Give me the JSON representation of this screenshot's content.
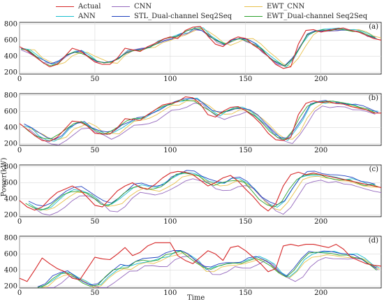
{
  "figure": {
    "ylabel": "Power(kW)",
    "xlabel": "Time"
  },
  "legend": [
    {
      "name": "Actual",
      "color": "#d62728"
    },
    {
      "name": "CNN",
      "color": "#9467bd"
    },
    {
      "name": "EWT_CNN",
      "color": "#e8c04a"
    },
    {
      "name": "ANN",
      "color": "#17becf"
    },
    {
      "name": "STL_Dual-channel Seq2Seq",
      "color": "#1f3fbf"
    },
    {
      "name": "EWT_Dual-channel Seq2Seq",
      "color": "#2ca02c"
    }
  ],
  "chart_data": [
    {
      "type": "line",
      "panel_label": "(a)",
      "xlim": [
        0,
        240
      ],
      "ylim": [
        180,
        820
      ],
      "xticks": [
        0,
        50,
        100,
        150,
        200
      ],
      "yticks": [
        200,
        400,
        600,
        800
      ],
      "grid": true,
      "actual": {
        "x": [
          0,
          5,
          10,
          15,
          20,
          25,
          30,
          35,
          40,
          45,
          50,
          55,
          60,
          65,
          70,
          75,
          80,
          85,
          90,
          95,
          100,
          105,
          110,
          115,
          120,
          125,
          130,
          135,
          140,
          145,
          150,
          155,
          160,
          165,
          170,
          175,
          180,
          185,
          190,
          195,
          200,
          205,
          210,
          215,
          220,
          225,
          230,
          235,
          240
        ],
        "y": [
          520,
          470,
          400,
          330,
          270,
          300,
          400,
          500,
          470,
          400,
          330,
          300,
          300,
          380,
          500,
          480,
          460,
          520,
          560,
          610,
          640,
          620,
          720,
          760,
          770,
          650,
          550,
          520,
          600,
          640,
          620,
          540,
          480,
          400,
          300,
          250,
          270,
          550,
          720,
          730,
          700,
          720,
          740,
          750,
          720,
          700,
          660,
          620,
          600
        ]
      },
      "offsets": {
        "ANN": [
          2,
          8
        ],
        "CNN": [
          1,
          -5
        ],
        "EWT_CNN": [
          5,
          0
        ],
        "STL_Dual-channel Seq2Seq": [
          1,
          4
        ],
        "EWT_Dual-channel Seq2Seq": [
          1,
          -2
        ]
      }
    },
    {
      "type": "line",
      "panel_label": "(b)",
      "xlim": [
        0,
        240
      ],
      "ylim": [
        180,
        820
      ],
      "xticks": [
        0,
        50,
        100,
        150,
        200
      ],
      "yticks": [
        200,
        400,
        600,
        800
      ],
      "grid": true,
      "actual": {
        "x": [
          0,
          5,
          10,
          15,
          20,
          25,
          30,
          35,
          40,
          45,
          50,
          55,
          60,
          65,
          70,
          75,
          80,
          85,
          90,
          95,
          100,
          105,
          110,
          115,
          120,
          125,
          130,
          135,
          140,
          145,
          150,
          155,
          160,
          165,
          170,
          175,
          180,
          185,
          190,
          195,
          200,
          205,
          210,
          215,
          220,
          225,
          230,
          235,
          240
        ],
        "y": [
          450,
          380,
          300,
          240,
          230,
          280,
          380,
          480,
          470,
          420,
          330,
          320,
          320,
          400,
          510,
          500,
          490,
          560,
          620,
          680,
          700,
          720,
          780,
          770,
          690,
          560,
          530,
          600,
          650,
          660,
          610,
          540,
          450,
          330,
          250,
          240,
          280,
          560,
          700,
          730,
          710,
          720,
          700,
          690,
          660,
          640,
          620,
          580,
          580
        ]
      },
      "offsets": {
        "ANN": [
          3,
          0
        ],
        "CNN": [
          6,
          -60
        ],
        "EWT_CNN": [
          6,
          -10
        ],
        "STL_Dual-channel Seq2Seq": [
          3,
          10
        ],
        "EWT_Dual-channel Seq2Seq": [
          1,
          0
        ]
      }
    },
    {
      "type": "line",
      "panel_label": "(c)",
      "xlim": [
        0,
        240
      ],
      "ylim": [
        180,
        820
      ],
      "xticks": [
        0,
        50,
        100,
        150,
        200
      ],
      "yticks": [
        200,
        400,
        600,
        800
      ],
      "grid": true,
      "actual": {
        "x": [
          0,
          5,
          10,
          15,
          20,
          25,
          30,
          35,
          40,
          45,
          50,
          55,
          60,
          65,
          70,
          75,
          80,
          85,
          90,
          95,
          100,
          105,
          110,
          115,
          120,
          125,
          130,
          135,
          140,
          145,
          150,
          155,
          160,
          165,
          170,
          175,
          180,
          185,
          190,
          195,
          200,
          205,
          210,
          215,
          220,
          225,
          230,
          235,
          240
        ],
        "y": [
          380,
          300,
          260,
          300,
          400,
          480,
          520,
          560,
          510,
          420,
          320,
          300,
          400,
          500,
          560,
          600,
          540,
          520,
          580,
          660,
          720,
          740,
          730,
          700,
          630,
          560,
          600,
          660,
          690,
          620,
          520,
          430,
          320,
          250,
          340,
          560,
          700,
          730,
          700,
          720,
          700,
          680,
          660,
          640,
          620,
          600,
          580,
          560,
          540
        ]
      },
      "offsets": {
        "ANN": [
          6,
          -10
        ],
        "CNN": [
          10,
          -90
        ],
        "EWT_CNN": [
          8,
          -40
        ],
        "STL_Dual-channel Seq2Seq": [
          6,
          10
        ],
        "EWT_Dual-channel Seq2Seq": [
          4,
          -20
        ]
      }
    },
    {
      "type": "line",
      "panel_label": "(d)",
      "xlim": [
        0,
        240
      ],
      "ylim": [
        180,
        820
      ],
      "xticks": [
        0,
        50,
        100,
        150,
        200
      ],
      "yticks": [
        200,
        400,
        600,
        800
      ],
      "grid": true,
      "actual": {
        "x": [
          0,
          5,
          10,
          15,
          20,
          25,
          30,
          35,
          40,
          45,
          50,
          55,
          60,
          65,
          70,
          75,
          80,
          85,
          90,
          95,
          100,
          105,
          110,
          115,
          120,
          125,
          130,
          135,
          140,
          145,
          150,
          155,
          160,
          165,
          170,
          175,
          180,
          185,
          190,
          195,
          200,
          205,
          210,
          215,
          220,
          225,
          230,
          235,
          240
        ],
        "y": [
          300,
          260,
          400,
          550,
          480,
          420,
          380,
          300,
          280,
          420,
          560,
          540,
          530,
          600,
          680,
          580,
          620,
          700,
          740,
          740,
          740,
          580,
          520,
          480,
          560,
          640,
          600,
          520,
          680,
          700,
          640,
          560,
          480,
          380,
          420,
          700,
          720,
          700,
          720,
          720,
          700,
          680,
          720,
          660,
          560,
          520,
          480,
          460,
          450
        ]
      },
      "offsets": {
        "ANN": [
          14,
          -100
        ],
        "CNN": [
          18,
          -170
        ],
        "EWT_CNN": [
          14,
          -130
        ],
        "STL_Dual-channel Seq2Seq": [
          12,
          -90
        ],
        "EWT_Dual-channel Seq2Seq": [
          12,
          -110
        ]
      }
    }
  ]
}
